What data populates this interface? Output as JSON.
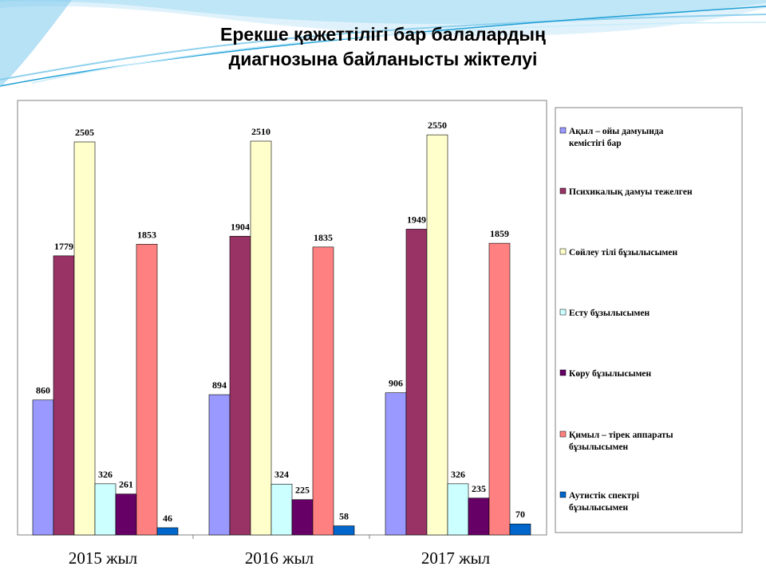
{
  "slide": {
    "title_line1": "Ерекше қажеттілігі бар балалардың",
    "title_line2": "диагнозына байланысты жіктелуі"
  },
  "colors": {
    "bg_wave_dark": "#1e9fd6",
    "bg_wave_light": "#bfe6f6"
  },
  "chart_data": {
    "type": "bar",
    "title": "Ерекше қажеттілігі бар балалардың диагнозына байланысты жіктелуі",
    "categories": [
      "2015 жыл",
      "2016 жыл",
      "2017 жыл"
    ],
    "ylim": [
      0,
      2900
    ],
    "grid": false,
    "legend_position": "right",
    "series": [
      {
        "name": "Ақыл – ойы дамуында кемістігі бар",
        "color": "#9999ff",
        "values": [
          860,
          894,
          906
        ]
      },
      {
        "name": "Психикалық дамуы тежелген",
        "color": "#993366",
        "values": [
          1779,
          1904,
          1949
        ]
      },
      {
        "name": "Сөйлеу тілі бұзылысымен",
        "color": "#ffffcc",
        "values": [
          2505,
          2510,
          2550
        ]
      },
      {
        "name": "Есту бұзылысымен",
        "color": "#ccffff",
        "values": [
          326,
          324,
          326
        ]
      },
      {
        "name": "Көру бұзылысымен",
        "color": "#660066",
        "values": [
          261,
          225,
          235
        ]
      },
      {
        "name": "Қимыл – тірек аппараты бұзылысымен",
        "color": "#ff8080",
        "values": [
          1853,
          1835,
          1859
        ]
      },
      {
        "name": "Аутистік спектрі бұзылысымен",
        "color": "#0066cc",
        "values": [
          46,
          58,
          70
        ]
      }
    ]
  }
}
